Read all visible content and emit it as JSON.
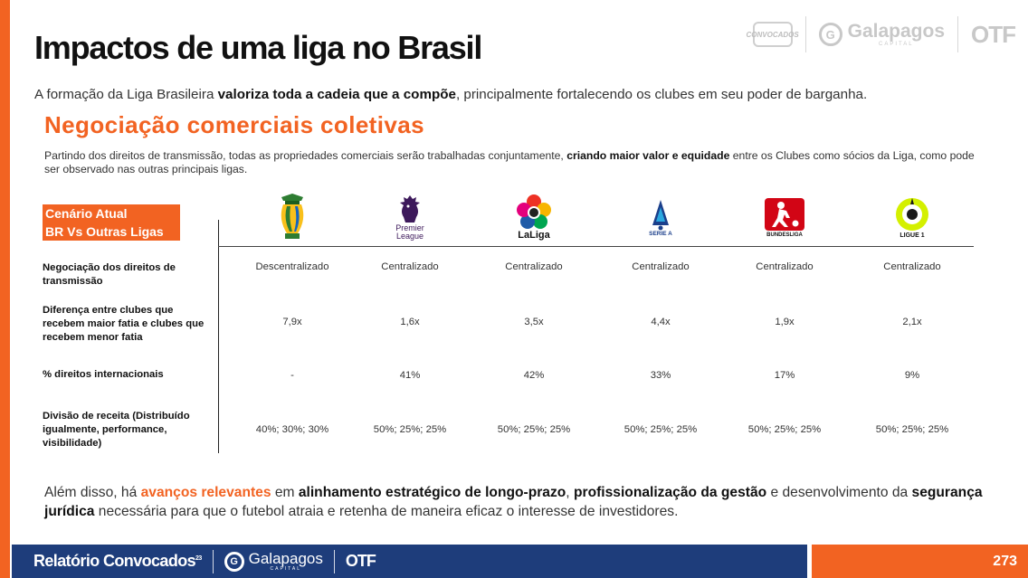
{
  "header": {
    "title": "Impactos de uma liga no Brasil",
    "logos": {
      "crest_text": "CONVOCADOS",
      "galapagos_name": "Galapagos",
      "galapagos_caption": "CAPITAL",
      "otf": "OTF"
    }
  },
  "intro": {
    "part1": "A formação da Liga Brasileira ",
    "bold1": "valoriza toda a cadeia que a compõe",
    "part2": ", principalmente fortalecendo os clubes em seu poder de barganha."
  },
  "section": {
    "title": "Negociação comerciais coletivas",
    "desc_part1": "Partindo dos direitos de transmissão, todas as propriedades comerciais serão trabalhadas conjuntamente, ",
    "desc_bold": "criando maior valor e equidade",
    "desc_part2": " entre os Clubes como sócios da Liga, como pode ser observado nas outras principais ligas."
  },
  "table": {
    "scenario_line1": "Cenário Atual",
    "scenario_line2": "BR Vs Outras Ligas",
    "leagues": [
      {
        "name": "Brasileirão",
        "logo_caption": "",
        "icon": "brasileirao-trophy-icon",
        "color": "#2e7d32"
      },
      {
        "name": "Premier League",
        "logo_caption": "Premier League",
        "icon": "premier-league-lion-icon",
        "color": "#3d195b"
      },
      {
        "name": "LaLiga",
        "logo_caption": "LaLiga",
        "icon": "laliga-flower-icon",
        "color": "#ee3124"
      },
      {
        "name": "Serie A",
        "logo_caption": "SERIE A",
        "icon": "serie-a-icon",
        "color": "#1b3f8b"
      },
      {
        "name": "Bundesliga",
        "logo_caption": "BUNDESLIGA",
        "icon": "bundesliga-player-icon",
        "color": "#d20515"
      },
      {
        "name": "Ligue 1",
        "logo_caption": "LIGUE 1",
        "icon": "ligue1-ball-icon",
        "color": "#d4f000"
      }
    ],
    "rows": [
      {
        "label": "Negociação dos direitos de transmissão",
        "values": [
          "Descentralizado",
          "Centralizado",
          "Centralizado",
          "Centralizado",
          "Centralizado",
          "Centralizado"
        ]
      },
      {
        "label": "Diferença entre clubes que recebem maior fatia  e clubes que recebem menor fatia",
        "values": [
          "7,9x",
          "1,6x",
          "3,5x",
          "4,4x",
          "1,9x",
          "2,1x"
        ]
      },
      {
        "label": "% direitos internacionais",
        "values": [
          "-",
          "41%",
          "42%",
          "33%",
          "17%",
          "9%"
        ]
      },
      {
        "label": "Divisão de receita (Distribuído igualmente, performance, visibilidade)",
        "values": [
          "40%; 30%; 30%",
          "50%; 25%; 25%",
          "50%; 25%; 25%",
          "50%; 25%; 25%",
          "50%; 25%; 25%",
          "50%; 25%; 25%"
        ]
      }
    ]
  },
  "outro": {
    "t1": "Além disso, há ",
    "hl1": "avanços relevantes",
    "t2": " em ",
    "b1": "alinhamento estratégico de longo-prazo",
    "t3": ", ",
    "b2": "profissionalização da gestão",
    "t4": " e desenvolvimento da ",
    "b3": "segurança jurídica",
    "t5": " necessária para que o futebol atraia e retenha de maneira eficaz o interesse de investidores."
  },
  "footer": {
    "brand": "Relatório Convocados",
    "brand_sup": "23",
    "galapagos_name": "Galapagos",
    "galapagos_caption": "CAPITAL",
    "otf": "OTF",
    "page_number": "273"
  },
  "colors": {
    "accent": "#f26322",
    "footer_blue": "#1e3d7b"
  }
}
